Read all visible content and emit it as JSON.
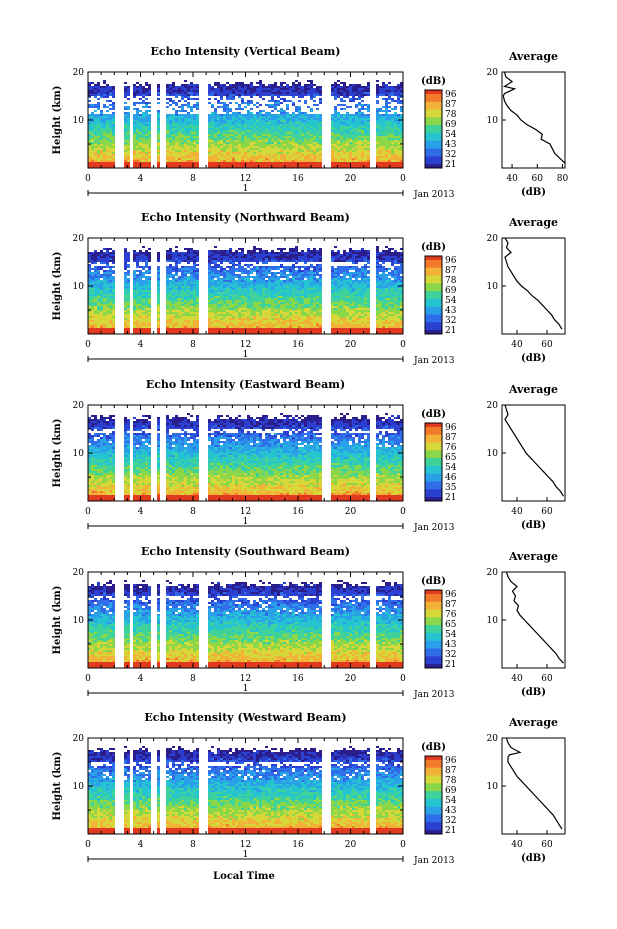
{
  "figure": {
    "x_title": "Local Time",
    "date_label": "Jan 2013",
    "day_label": "1",
    "colorbar_unit": "(dB)",
    "avg_title": "Average",
    "avg_xlabel": "(dB)",
    "height_label": "Height (km)"
  },
  "colors": {
    "scale": [
      "#2a1e8c",
      "#2b3fd0",
      "#2f6ee8",
      "#2aa0e8",
      "#26c4d0",
      "#3fd29a",
      "#8ad84a",
      "#d6d83a",
      "#f2b238",
      "#f27a2a",
      "#e23a1e"
    ],
    "line": "#000000",
    "gap": "#ffffff"
  },
  "chart_data": [
    {
      "type": "heatmap",
      "title": "Echo Intensity (Vertical Beam)",
      "ylabel": "Height (km)",
      "x_ticks": [
        "0",
        "4",
        "8",
        "12",
        "16",
        "20",
        "0"
      ],
      "y_ticks": [
        "20",
        "10"
      ],
      "xlim": [
        0,
        24
      ],
      "ylim": [
        0,
        20
      ],
      "colorbar": {
        "unit": "(dB)",
        "ticks": [
          "96",
          "87",
          "78",
          "69",
          "54",
          "43",
          "32",
          "21"
        ],
        "range": [
          21,
          96
        ]
      },
      "average_profile": {
        "title": "Average",
        "xlabel": "(dB)",
        "x_ticks": [
          "40",
          "60",
          "80"
        ],
        "xlim": [
          32,
          82
        ],
        "y_ticks": [
          "20",
          "10"
        ],
        "height_km": [
          20,
          19,
          18,
          17,
          16.5,
          15.5,
          15,
          14,
          13,
          12,
          11,
          10,
          9,
          8,
          7,
          6,
          5,
          4,
          3,
          2,
          1
        ],
        "db": [
          34,
          35,
          40,
          34,
          42,
          34,
          33,
          34,
          36,
          39,
          44,
          47,
          52,
          59,
          64,
          63,
          70,
          72,
          74,
          78,
          82
        ]
      }
    },
    {
      "type": "heatmap",
      "title": "Echo Intensity (Northward Beam)",
      "ylabel": "Height (km)",
      "x_ticks": [
        "0",
        "4",
        "8",
        "12",
        "16",
        "20",
        "0"
      ],
      "y_ticks": [
        "20",
        "10"
      ],
      "xlim": [
        0,
        24
      ],
      "ylim": [
        0,
        20
      ],
      "colorbar": {
        "unit": "(dB)",
        "ticks": [
          "96",
          "87",
          "78",
          "69",
          "54",
          "43",
          "32",
          "21"
        ],
        "range": [
          21,
          96
        ]
      },
      "average_profile": {
        "title": "Average",
        "xlabel": "(dB)",
        "x_ticks": [
          "40",
          "60"
        ],
        "xlim": [
          30,
          72
        ],
        "y_ticks": [
          "20",
          "10"
        ],
        "height_km": [
          20,
          19,
          18,
          17,
          16,
          15,
          14,
          13,
          12,
          11,
          10,
          9,
          8,
          7,
          6,
          5,
          4,
          3,
          2,
          1
        ],
        "db": [
          32,
          34,
          33,
          36,
          32,
          33,
          34,
          36,
          38,
          40,
          43,
          47,
          50,
          54,
          57,
          60,
          63,
          65,
          68,
          70
        ]
      }
    },
    {
      "type": "heatmap",
      "title": "Echo Intensity (Eastward Beam)",
      "ylabel": "Height (km)",
      "x_ticks": [
        "0",
        "4",
        "8",
        "12",
        "16",
        "20",
        "0"
      ],
      "y_ticks": [
        "20",
        "10"
      ],
      "xlim": [
        0,
        24
      ],
      "ylim": [
        0,
        20
      ],
      "colorbar": {
        "unit": "(dB)",
        "ticks": [
          "96",
          "87",
          "76",
          "65",
          "54",
          "46",
          "35",
          "21"
        ],
        "range": [
          21,
          96
        ]
      },
      "average_profile": {
        "title": "Average",
        "xlabel": "(dB)",
        "x_ticks": [
          "40",
          "60"
        ],
        "xlim": [
          30,
          72
        ],
        "y_ticks": [
          "20",
          "10"
        ],
        "height_km": [
          20,
          19,
          18,
          17,
          16,
          15,
          14,
          13,
          12,
          11,
          10,
          9,
          8,
          7,
          6,
          5,
          4,
          3,
          2,
          1
        ],
        "db": [
          32,
          33,
          34,
          32,
          34,
          36,
          38,
          40,
          42,
          44,
          46,
          49,
          52,
          55,
          58,
          61,
          64,
          66,
          69,
          71
        ]
      }
    },
    {
      "type": "heatmap",
      "title": "Echo Intensity (Southward Beam)",
      "ylabel": "Height (km)",
      "x_ticks": [
        "0",
        "4",
        "8",
        "12",
        "16",
        "20",
        "0"
      ],
      "y_ticks": [
        "20",
        "10"
      ],
      "xlim": [
        0,
        24
      ],
      "ylim": [
        0,
        20
      ],
      "colorbar": {
        "unit": "(dB)",
        "ticks": [
          "96",
          "87",
          "76",
          "65",
          "54",
          "43",
          "32",
          "21"
        ],
        "range": [
          21,
          96
        ]
      },
      "average_profile": {
        "title": "Average",
        "xlabel": "(dB)",
        "x_ticks": [
          "40",
          "60"
        ],
        "xlim": [
          30,
          72
        ],
        "y_ticks": [
          "20",
          "10"
        ],
        "height_km": [
          20,
          19,
          18,
          17,
          16,
          15,
          14,
          13,
          12,
          11,
          10,
          9,
          8,
          7,
          6,
          5,
          4,
          3,
          2,
          1
        ],
        "db": [
          33,
          34,
          36,
          40,
          37,
          39,
          38,
          41,
          40,
          42,
          45,
          48,
          51,
          54,
          57,
          60,
          63,
          66,
          68,
          71
        ]
      }
    },
    {
      "type": "heatmap",
      "title": "Echo Intensity (Westward Beam)",
      "ylabel": "Height (km)",
      "x_ticks": [
        "0",
        "4",
        "8",
        "12",
        "16",
        "20",
        "0"
      ],
      "y_ticks": [
        "20",
        "10"
      ],
      "xlim": [
        0,
        24
      ],
      "ylim": [
        0,
        20
      ],
      "colorbar": {
        "unit": "(dB)",
        "ticks": [
          "96",
          "87",
          "78",
          "69",
          "54",
          "43",
          "32",
          "21"
        ],
        "range": [
          21,
          96
        ]
      },
      "average_profile": {
        "title": "Average",
        "xlabel": "(dB)",
        "x_ticks": [
          "40",
          "60"
        ],
        "xlim": [
          30,
          72
        ],
        "y_ticks": [
          "20",
          "10"
        ],
        "height_km": [
          20,
          19,
          18,
          17,
          16.5,
          16,
          15,
          14,
          13,
          12,
          11,
          10,
          9,
          8,
          7,
          6,
          5,
          4,
          3,
          2,
          1
        ],
        "db": [
          33,
          34,
          36,
          42,
          35,
          34,
          34,
          36,
          38,
          40,
          43,
          46,
          49,
          52,
          55,
          58,
          61,
          64,
          66,
          68,
          70
        ]
      }
    }
  ]
}
